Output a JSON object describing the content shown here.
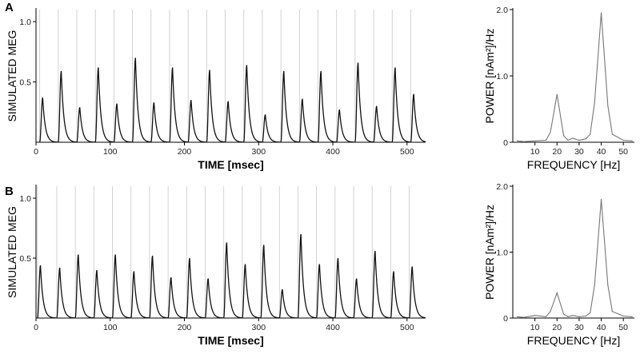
{
  "chart_data": [
    {
      "id": "A-time",
      "type": "line",
      "panel_letter": "A",
      "xlabel": "TIME [msec]",
      "ylabel": "SIMULATED MEG",
      "xlim": [
        0,
        525
      ],
      "ylim": [
        0,
        1.1
      ],
      "x_ticks": [
        0,
        100,
        200,
        300,
        400,
        500
      ],
      "y_ticks": [
        0.5,
        1.0
      ],
      "x_tick_labels": [
        "0",
        "100",
        "200",
        "300",
        "400",
        "500"
      ],
      "y_tick_labels": [
        "0.5",
        "1.0"
      ],
      "pulse_period_ms": 25,
      "pulse_rise_ms": 4,
      "pulse_decay_ms": 3.5,
      "pulse_onsets_ms": [
        5,
        30,
        55,
        80,
        105,
        130,
        155,
        180,
        205,
        230,
        255,
        280,
        305,
        330,
        355,
        380,
        405,
        430,
        455,
        480,
        505
      ],
      "pulse_peaks": [
        0.37,
        0.59,
        0.29,
        0.62,
        0.32,
        0.7,
        0.33,
        0.62,
        0.35,
        0.6,
        0.34,
        0.64,
        0.23,
        0.59,
        0.36,
        0.59,
        0.27,
        0.66,
        0.3,
        0.62,
        0.4
      ],
      "gridline_x_ms": [
        5,
        30,
        55,
        80,
        105,
        130,
        155,
        180,
        205,
        230,
        255,
        280,
        305,
        330,
        355,
        380,
        405,
        430,
        455,
        480,
        505
      ]
    },
    {
      "id": "A-spectrum",
      "type": "line",
      "xlabel": "FREQUENCY [Hz]",
      "ylabel": "POWER [nAm²]/Hz",
      "xlim": [
        0,
        55
      ],
      "ylim": [
        0,
        2.0
      ],
      "x_ticks": [
        10,
        20,
        30,
        40,
        50
      ],
      "y_ticks": [
        0,
        1.0,
        2.0
      ],
      "x_tick_labels": [
        "10",
        "20",
        "30",
        "40",
        "50"
      ],
      "y_tick_labels": [
        "0",
        "1.0",
        "2.0"
      ],
      "x": [
        2,
        5,
        10,
        15,
        17,
        20,
        23,
        25,
        27,
        30,
        33,
        35,
        37,
        40,
        43,
        45,
        50,
        54
      ],
      "y": [
        0.02,
        0.01,
        0.02,
        0.03,
        0.15,
        0.72,
        0.1,
        0.03,
        0.06,
        0.03,
        0.05,
        0.12,
        0.6,
        1.95,
        0.55,
        0.12,
        0.03,
        0.02
      ]
    },
    {
      "id": "B-time",
      "type": "line",
      "panel_letter": "B",
      "xlabel": "TIME [msec]",
      "ylabel": "SIMULATED MEG",
      "xlim": [
        0,
        525
      ],
      "ylim": [
        0,
        1.1
      ],
      "x_ticks": [
        0,
        100,
        200,
        300,
        400,
        500
      ],
      "y_ticks": [
        0.5,
        1.0
      ],
      "x_tick_labels": [
        "0",
        "100",
        "200",
        "300",
        "400",
        "500"
      ],
      "y_tick_labels": [
        "0.5",
        "1.0"
      ],
      "pulse_period_ms": 25,
      "pulse_rise_ms": 4,
      "pulse_decay_ms": 3.5,
      "pulse_onsets_ms": [
        2,
        28,
        53,
        78,
        103,
        128,
        153,
        178,
        203,
        228,
        253,
        278,
        303,
        328,
        353,
        378,
        403,
        428,
        453,
        478,
        503
      ],
      "pulse_peaks": [
        0.44,
        0.42,
        0.53,
        0.4,
        0.53,
        0.39,
        0.52,
        0.34,
        0.5,
        0.33,
        0.63,
        0.45,
        0.61,
        0.24,
        0.7,
        0.45,
        0.5,
        0.33,
        0.56,
        0.39,
        0.43
      ],
      "gridline_x_ms": [
        2,
        28,
        53,
        78,
        103,
        128,
        153,
        178,
        203,
        228,
        253,
        278,
        303,
        328,
        353,
        378,
        403,
        428,
        453,
        478,
        503
      ]
    },
    {
      "id": "B-spectrum",
      "type": "line",
      "xlabel": "FREQUENCY [Hz]",
      "ylabel": "POWER [nAm²]/Hz",
      "xlim": [
        0,
        55
      ],
      "ylim": [
        0,
        2.0
      ],
      "x_ticks": [
        10,
        20,
        30,
        40,
        50
      ],
      "y_ticks": [
        0,
        1.0,
        2.0
      ],
      "x_tick_labels": [
        "10",
        "20",
        "30",
        "40",
        "50"
      ],
      "y_tick_labels": [
        "0",
        "1.0",
        "2.0"
      ],
      "x": [
        2,
        5,
        10,
        15,
        17,
        20,
        23,
        25,
        27,
        30,
        33,
        35,
        37,
        40,
        43,
        45,
        50,
        54
      ],
      "y": [
        0.02,
        0.01,
        0.04,
        0.02,
        0.1,
        0.38,
        0.06,
        0.02,
        0.04,
        0.02,
        0.03,
        0.08,
        0.5,
        1.8,
        0.5,
        0.1,
        0.03,
        0.02
      ]
    }
  ]
}
